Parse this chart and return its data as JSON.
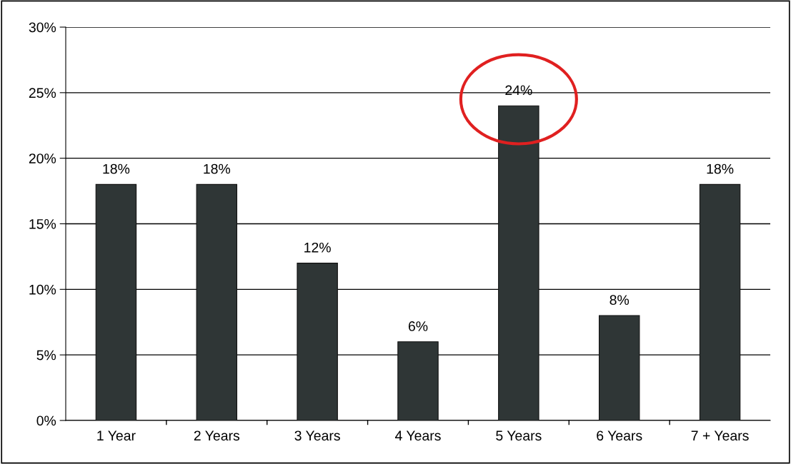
{
  "chart_data": {
    "type": "bar",
    "categories": [
      "1 Year",
      "2 Years",
      "3 Years",
      "4 Years",
      "5 Years",
      "6 Years",
      "7 + Years"
    ],
    "values": [
      18,
      18,
      12,
      6,
      24,
      8,
      18
    ],
    "value_labels": [
      "18%",
      "18%",
      "12%",
      "6%",
      "24%",
      "8%",
      "18%"
    ],
    "color": "#2f3636",
    "ylim": [
      0,
      30
    ],
    "yticks": [
      {
        "value": 0,
        "label": "0%"
      },
      {
        "value": 5,
        "label": "5%"
      },
      {
        "value": 10,
        "label": "10%"
      },
      {
        "value": 15,
        "label": "15%"
      },
      {
        "value": 20,
        "label": "20%"
      },
      {
        "value": 25,
        "label": "25%"
      },
      {
        "value": 30,
        "label": "30%"
      }
    ],
    "grid": "y",
    "legend": false
  }
}
